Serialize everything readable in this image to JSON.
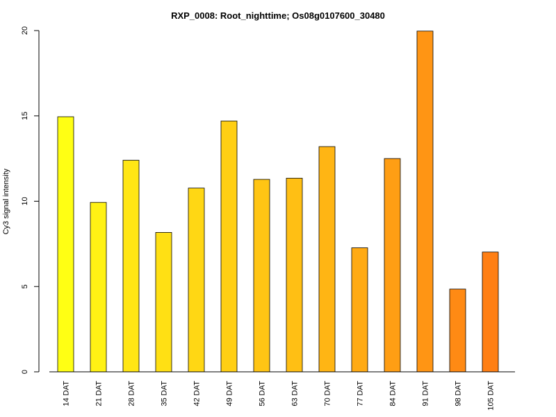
{
  "chart_data": {
    "type": "bar",
    "title": "RXP_0008: Root_nighttime; Os08g0107600_30480",
    "xlabel": "",
    "ylabel": "Cy3 signal intensity",
    "ylim": [
      0,
      20
    ],
    "yticks": [
      0,
      5,
      10,
      15,
      20
    ],
    "grid": false,
    "categories": [
      "14 DAT",
      "21 DAT",
      "28 DAT",
      "35 DAT",
      "42 DAT",
      "49 DAT",
      "56 DAT",
      "63 DAT",
      "70 DAT",
      "77 DAT",
      "84 DAT",
      "91 DAT",
      "98 DAT",
      "105 DAT"
    ],
    "values": [
      14.95,
      9.93,
      12.4,
      8.17,
      10.77,
      14.7,
      11.28,
      11.35,
      13.2,
      7.27,
      12.5,
      19.97,
      4.85,
      7.02
    ],
    "colors": [
      "#FFFF14",
      "#FFF214",
      "#FFE614",
      "#FFE014",
      "#FFD714",
      "#FFCF14",
      "#FFC514",
      "#FFBF14",
      "#FFB514",
      "#FFAA14",
      "#FF9E14",
      "#FF9514",
      "#FF8A14",
      "#FF7F14"
    ]
  }
}
